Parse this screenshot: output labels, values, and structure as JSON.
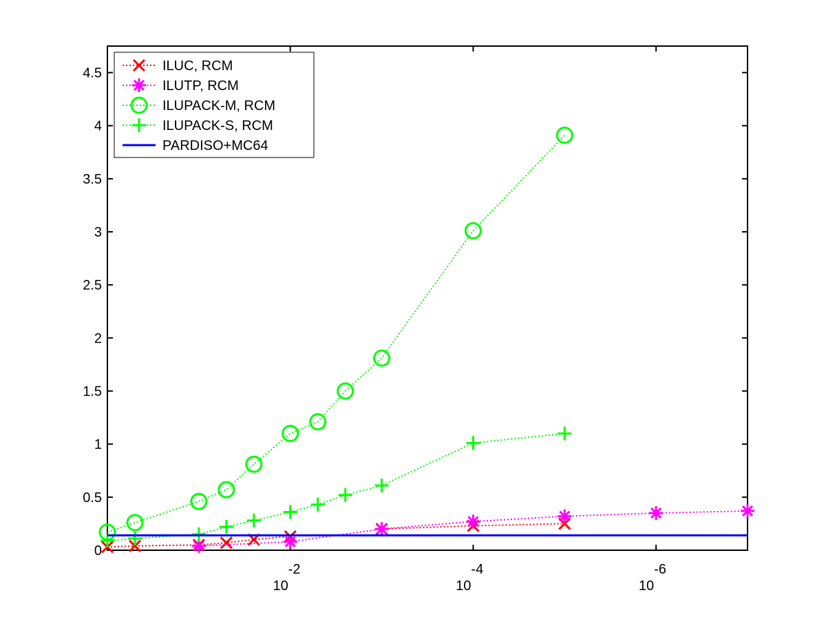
{
  "chart_data": {
    "type": "line",
    "title": "",
    "xlabel": "",
    "ylabel": "",
    "x_scale": "log",
    "x_reversed": true,
    "xlim": [
      1,
      1e-07
    ],
    "ylim": [
      0,
      4.75
    ],
    "grid": false,
    "legend_position": "top-left",
    "x_ticks": [
      {
        "value": 0.01,
        "base": "10",
        "exp": "-2"
      },
      {
        "value": 0.0001,
        "base": "10",
        "exp": "-4"
      },
      {
        "value": 1e-06,
        "base": "10",
        "exp": "-6"
      }
    ],
    "y_ticks": [
      "0",
      "0.5",
      "1",
      "1.5",
      "2",
      "2.5",
      "3",
      "3.5",
      "4",
      "4.5"
    ],
    "series": [
      {
        "name": "ILUC, RCM",
        "color": "#ff0000",
        "marker": "x",
        "line": "dotted",
        "x": [
          1,
          0.5,
          0.1,
          0.05,
          0.025,
          0.01
        ],
        "y": [
          0.03,
          0.04,
          0.05,
          0.07,
          0.1,
          0.13
        ],
        "x2": [
          0.001,
          0.0001,
          1e-05
        ],
        "y2": [
          0.2,
          0.23,
          0.25
        ]
      },
      {
        "name": "ILUTP, RCM",
        "color": "#ff00ff",
        "marker": "asterisk",
        "line": "dotted",
        "x": [
          0.1,
          0.01,
          0.001,
          0.0001,
          1e-05,
          1e-06,
          1e-07
        ],
        "y": [
          0.04,
          0.08,
          0.2,
          0.27,
          0.32,
          0.35,
          0.37
        ]
      },
      {
        "name": "ILUPACK-M, RCM",
        "color": "#00ff00",
        "marker": "circle",
        "line": "dotted",
        "x": [
          1,
          0.5,
          0.1,
          0.05,
          0.025,
          0.01,
          0.005,
          0.0025,
          0.001,
          0.0001,
          1e-05
        ],
        "y": [
          0.17,
          0.26,
          0.46,
          0.57,
          0.81,
          1.1,
          1.21,
          1.5,
          1.81,
          3.01,
          3.91
        ]
      },
      {
        "name": "ILUPACK-S, RCM",
        "color": "#00ff00",
        "marker": "plus",
        "line": "dotted",
        "x": [
          1,
          0.5,
          0.1,
          0.05,
          0.025,
          0.01,
          0.005,
          0.0025,
          0.001,
          0.0001,
          1e-05
        ],
        "y": [
          0.09,
          0.11,
          0.15,
          0.22,
          0.28,
          0.36,
          0.43,
          0.52,
          0.61,
          1.01,
          1.1
        ]
      },
      {
        "name": "PARDISO+MC64",
        "color": "#0000ff",
        "marker": "none",
        "line": "solid",
        "x": [
          1,
          1e-07
        ],
        "y": [
          0.14,
          0.14
        ]
      }
    ]
  }
}
